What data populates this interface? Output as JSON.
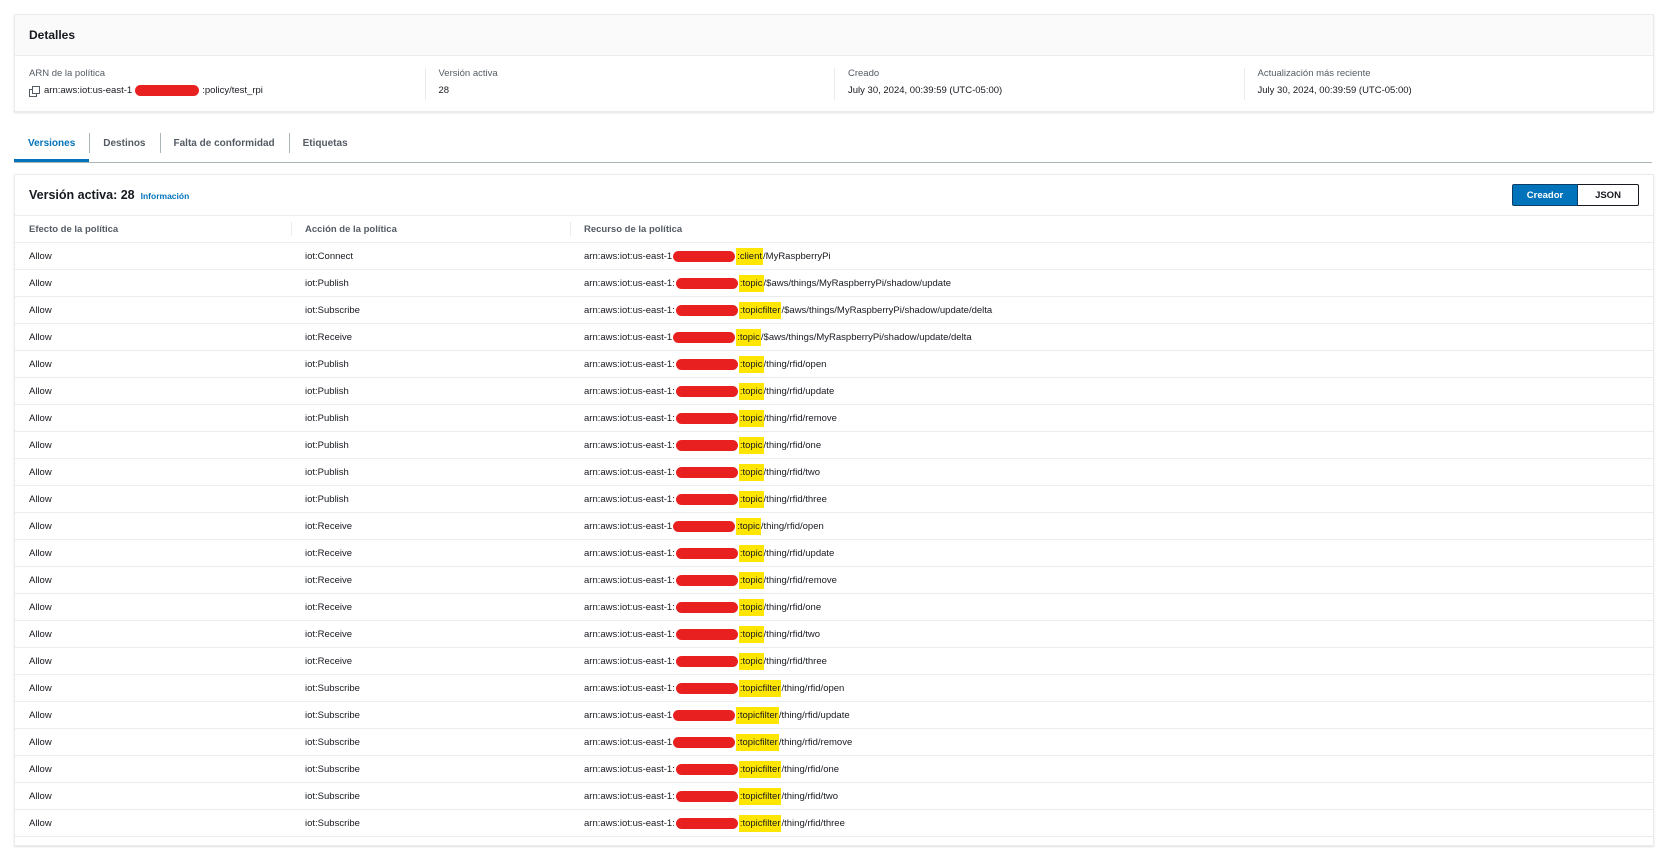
{
  "details": {
    "title": "Detalles",
    "arn_label": "ARN de la política",
    "arn_prefix": "arn:aws:iot:us-east-1",
    "arn_suffix": ":policy/test_rpi",
    "active_version_label": "Versión activa",
    "active_version_value": "28",
    "created_label": "Creado",
    "created_value": "July 30, 2024, 00:39:59 (UTC-05:00)",
    "updated_label": "Actualización más reciente",
    "updated_value": "July 30, 2024, 00:39:59 (UTC-05:00)"
  },
  "tabs": [
    {
      "label": "Versiones"
    },
    {
      "label": "Destinos"
    },
    {
      "label": "Falta de conformidad"
    },
    {
      "label": "Etiquetas"
    }
  ],
  "policy": {
    "title": "Versión activa: 28",
    "info_link": "Información",
    "builder_button": "Creador",
    "json_button": "JSON",
    "columns": [
      "Efecto de la política",
      "Acción de la política",
      "Recurso de la política"
    ],
    "rows": [
      {
        "effect": "Allow",
        "action": "iot:Connect",
        "prefix": "arn:aws:iot:us-east-1",
        "type": ":client",
        "path": "/MyRaspberryPi"
      },
      {
        "effect": "Allow",
        "action": "iot:Publish",
        "prefix": "arn:aws:iot:us-east-1:",
        "type": ":topic",
        "path": "/$aws/things/MyRaspberryPi/shadow/update"
      },
      {
        "effect": "Allow",
        "action": "iot:Subscribe",
        "prefix": "arn:aws:iot:us-east-1:",
        "type": ":topicfilter",
        "path": "/$aws/things/MyRaspberryPi/shadow/update/delta"
      },
      {
        "effect": "Allow",
        "action": "iot:Receive",
        "prefix": "arn:aws:iot:us-east-1",
        "type": ":topic",
        "path": "/$aws/things/MyRaspberryPi/shadow/update/delta"
      },
      {
        "effect": "Allow",
        "action": "iot:Publish",
        "prefix": "arn:aws:iot:us-east-1:",
        "type": ":topic",
        "path": "/thing/rfid/open"
      },
      {
        "effect": "Allow",
        "action": "iot:Publish",
        "prefix": "arn:aws:iot:us-east-1:",
        "type": ":topic",
        "path": "/thing/rfid/update"
      },
      {
        "effect": "Allow",
        "action": "iot:Publish",
        "prefix": "arn:aws:iot:us-east-1:",
        "type": ":topic",
        "path": "/thing/rfid/remove"
      },
      {
        "effect": "Allow",
        "action": "iot:Publish",
        "prefix": "arn:aws:iot:us-east-1:",
        "type": ":topic",
        "path": "/thing/rfid/one"
      },
      {
        "effect": "Allow",
        "action": "iot:Publish",
        "prefix": "arn:aws:iot:us-east-1:",
        "type": ":topic",
        "path": "/thing/rfid/two"
      },
      {
        "effect": "Allow",
        "action": "iot:Publish",
        "prefix": "arn:aws:iot:us-east-1:",
        "type": ":topic",
        "path": "/thing/rfid/three"
      },
      {
        "effect": "Allow",
        "action": "iot:Receive",
        "prefix": "arn:aws:iot:us-east-1",
        "type": ":topic",
        "path": "/thing/rfid/open"
      },
      {
        "effect": "Allow",
        "action": "iot:Receive",
        "prefix": "arn:aws:iot:us-east-1:",
        "type": ":topic",
        "path": "/thing/rfid/update"
      },
      {
        "effect": "Allow",
        "action": "iot:Receive",
        "prefix": "arn:aws:iot:us-east-1:",
        "type": ":topic",
        "path": "/thing/rfid/remove"
      },
      {
        "effect": "Allow",
        "action": "iot:Receive",
        "prefix": "arn:aws:iot:us-east-1:",
        "type": ":topic",
        "path": "/thing/rfid/one"
      },
      {
        "effect": "Allow",
        "action": "iot:Receive",
        "prefix": "arn:aws:iot:us-east-1:",
        "type": ":topic",
        "path": "/thing/rfid/two"
      },
      {
        "effect": "Allow",
        "action": "iot:Receive",
        "prefix": "arn:aws:iot:us-east-1:",
        "type": ":topic",
        "path": "/thing/rfid/three"
      },
      {
        "effect": "Allow",
        "action": "iot:Subscribe",
        "prefix": "arn:aws:iot:us-east-1:",
        "type": ":topicfilter",
        "path": "/thing/rfid/open"
      },
      {
        "effect": "Allow",
        "action": "iot:Subscribe",
        "prefix": "arn:aws:iot:us-east-1",
        "type": ":topicfilter",
        "path": "/thing/rfid/update"
      },
      {
        "effect": "Allow",
        "action": "iot:Subscribe",
        "prefix": "arn:aws:iot:us-east-1",
        "type": ":topicfilter",
        "path": "/thing/rfid/remove"
      },
      {
        "effect": "Allow",
        "action": "iot:Subscribe",
        "prefix": "arn:aws:iot:us-east-1:",
        "type": ":topicfilter",
        "path": "/thing/rfid/one"
      },
      {
        "effect": "Allow",
        "action": "iot:Subscribe",
        "prefix": "arn:aws:iot:us-east-1:",
        "type": ":topicfilter",
        "path": "/thing/rfid/two"
      },
      {
        "effect": "Allow",
        "action": "iot:Subscribe",
        "prefix": "arn:aws:iot:us-east-1:",
        "type": ":topicfilter",
        "path": "/thing/rfid/three"
      }
    ]
  },
  "colors": {
    "accent": "#0073bb",
    "redaction": "#e8201f",
    "highlight": "#ffe600"
  }
}
